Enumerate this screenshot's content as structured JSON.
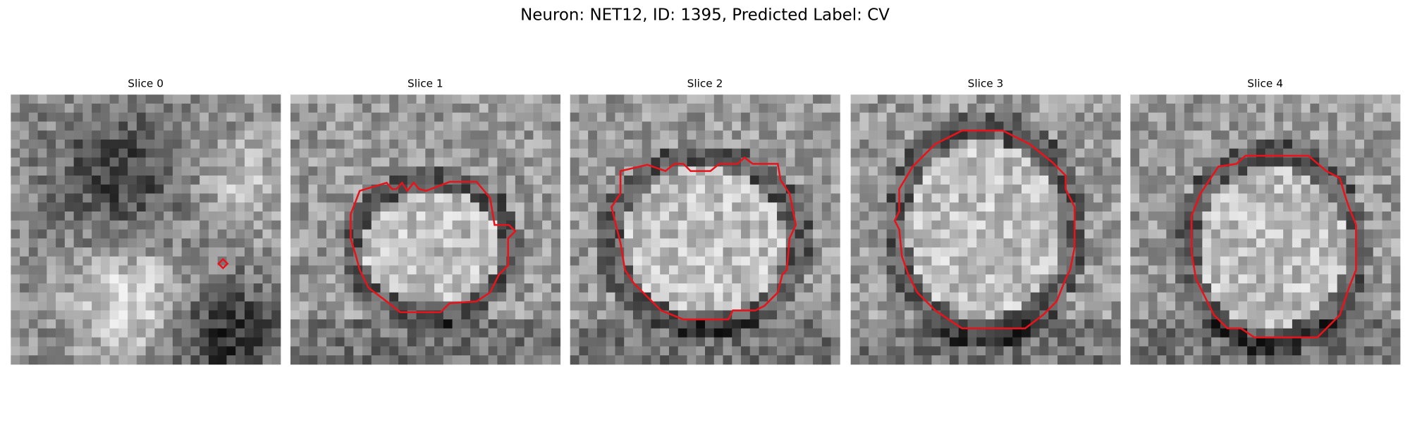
{
  "title": "Neuron: NET12, ID: 1395, Predicted Label: CV",
  "panels": [
    {
      "title": "Slice 0"
    },
    {
      "title": "Slice 1"
    },
    {
      "title": "Slice 2"
    },
    {
      "title": "Slice 3"
    },
    {
      "title": "Slice 4"
    }
  ]
}
